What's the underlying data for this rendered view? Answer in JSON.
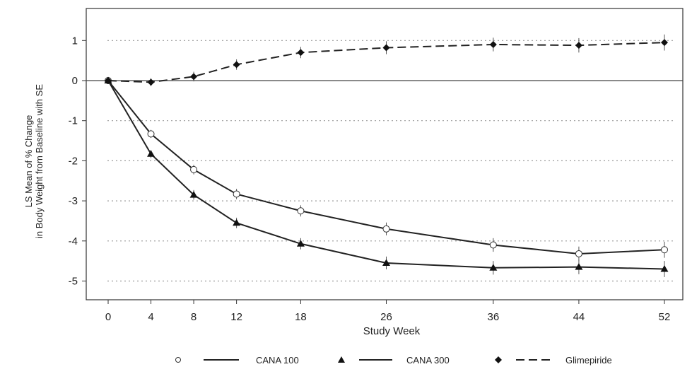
{
  "chart_data": {
    "type": "line",
    "xlabel": "Study Week",
    "ylabel_lines": [
      "LS Mean of % Change",
      "in Body Weight from Baseline with SE"
    ],
    "x_ticks": [
      0,
      4,
      8,
      12,
      18,
      26,
      36,
      44,
      52
    ],
    "y_ticks": [
      1,
      0,
      -1,
      -2,
      -3,
      -4,
      -5
    ],
    "ylim": [
      -5.5,
      1.7
    ],
    "grid": "dotted horizontal",
    "legend_position": "bottom",
    "series": [
      {
        "name": "CANA 100",
        "marker": "open-circle",
        "line": "solid",
        "x": [
          0,
          4,
          8,
          12,
          18,
          26,
          36,
          44,
          52
        ],
        "y": [
          0,
          -1.33,
          -2.22,
          -2.83,
          -3.25,
          -3.7,
          -4.1,
          -4.32,
          -4.22
        ],
        "se": [
          0.05,
          0.1,
          0.12,
          0.13,
          0.14,
          0.16,
          0.17,
          0.18,
          0.2
        ]
      },
      {
        "name": "CANA 300",
        "marker": "filled-triangle",
        "line": "solid",
        "x": [
          0,
          4,
          8,
          12,
          18,
          26,
          36,
          44,
          52
        ],
        "y": [
          0,
          -1.83,
          -2.85,
          -3.55,
          -4.07,
          -4.55,
          -4.67,
          -4.65,
          -4.7
        ],
        "se": [
          0.05,
          0.1,
          0.12,
          0.13,
          0.14,
          0.16,
          0.17,
          0.18,
          0.2
        ]
      },
      {
        "name": "Glimepiride",
        "marker": "filled-diamond",
        "line": "dashed",
        "x": [
          0,
          4,
          8,
          12,
          18,
          26,
          36,
          44,
          52
        ],
        "y": [
          0,
          -0.04,
          0.1,
          0.4,
          0.7,
          0.82,
          0.9,
          0.88,
          0.95
        ],
        "se": [
          0.05,
          0.1,
          0.12,
          0.13,
          0.14,
          0.16,
          0.17,
          0.18,
          0.2
        ]
      }
    ]
  }
}
